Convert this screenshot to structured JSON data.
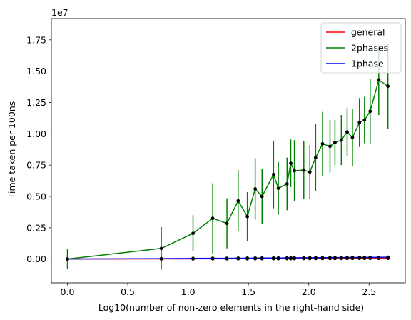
{
  "chart_data": {
    "type": "line",
    "title": "",
    "xlabel": "Log10(number of non-zero elements in the right-hand side)",
    "ylabel": "Time taken per 100ns",
    "offset_text": "1e7",
    "xlim": [
      -0.133,
      2.8
    ],
    "ylim": [
      -1900000,
      19200000
    ],
    "x_ticks": [
      0.0,
      0.5,
      1.0,
      1.5,
      2.0,
      2.5
    ],
    "x_tick_labels": [
      "0.0",
      "0.5",
      "1.0",
      "1.5",
      "2.0",
      "2.5"
    ],
    "y_ticks": [
      0,
      2500000,
      5000000,
      7500000,
      10000000,
      12500000,
      15000000,
      17500000
    ],
    "y_tick_labels": [
      "0.00",
      "0.25",
      "0.50",
      "0.75",
      "1.00",
      "1.25",
      "1.50",
      "1.75"
    ],
    "legend_position": "top-right",
    "grid": false,
    "series": [
      {
        "name": "general",
        "color": "#ff0000",
        "x": [
          0.0,
          0.778,
          1.041,
          1.204,
          1.322,
          1.415,
          1.491,
          1.556,
          1.613,
          1.708,
          1.748,
          1.82,
          1.851,
          1.881,
          1.959,
          2.009,
          2.057,
          2.114,
          2.176,
          2.217,
          2.27,
          2.318,
          2.362,
          2.42,
          2.462,
          2.509,
          2.58,
          2.656
        ],
        "y": [
          0,
          10000,
          15000,
          20000,
          20000,
          25000,
          25000,
          25000,
          30000,
          30000,
          30000,
          35000,
          35000,
          35000,
          40000,
          40000,
          40000,
          45000,
          45000,
          45000,
          50000,
          50000,
          50000,
          55000,
          55000,
          55000,
          60000,
          60000
        ]
      },
      {
        "name": "2phases",
        "color": "#008000",
        "x": [
          0.0,
          0.778,
          1.041,
          1.204,
          1.322,
          1.415,
          1.491,
          1.556,
          1.613,
          1.708,
          1.748,
          1.82,
          1.851,
          1.881,
          1.959,
          2.009,
          2.057,
          2.114,
          2.176,
          2.217,
          2.27,
          2.318,
          2.362,
          2.42,
          2.462,
          2.509,
          2.58,
          2.656
        ],
        "y": [
          0,
          850000,
          2050000,
          3250000,
          2850000,
          4650000,
          3400000,
          5600000,
          5000000,
          6750000,
          5650000,
          6000000,
          7650000,
          7050000,
          7100000,
          6950000,
          8100000,
          9200000,
          9000000,
          9300000,
          9500000,
          10150000,
          9700000,
          10900000,
          11100000,
          11800000,
          14300000,
          13800000
        ],
        "err": [
          800000,
          1700000,
          1450000,
          2800000,
          2000000,
          2450000,
          1950000,
          2450000,
          2200000,
          2700000,
          2100000,
          2100000,
          1900000,
          2450000,
          2300000,
          2150000,
          2700000,
          2550000,
          2100000,
          1800000,
          2000000,
          1900000,
          2300000,
          1950000,
          1850000,
          2600000,
          2800000,
          3400000
        ]
      },
      {
        "name": "1phase",
        "color": "#0000ff",
        "x": [
          0.0,
          0.778,
          1.041,
          1.204,
          1.322,
          1.415,
          1.491,
          1.556,
          1.613,
          1.708,
          1.748,
          1.82,
          1.851,
          1.881,
          1.959,
          2.009,
          2.057,
          2.114,
          2.176,
          2.217,
          2.27,
          2.318,
          2.362,
          2.42,
          2.462,
          2.509,
          2.58,
          2.656
        ],
        "y": [
          0,
          30000,
          50000,
          60000,
          60000,
          70000,
          70000,
          75000,
          80000,
          85000,
          85000,
          90000,
          95000,
          95000,
          100000,
          100000,
          105000,
          110000,
          110000,
          115000,
          115000,
          120000,
          125000,
          125000,
          130000,
          135000,
          140000,
          145000
        ]
      }
    ]
  }
}
